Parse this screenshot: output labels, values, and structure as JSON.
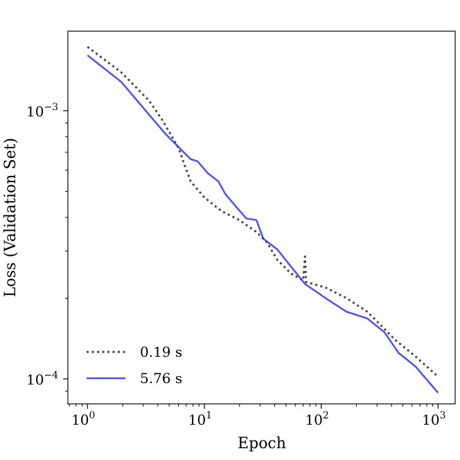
{
  "chart_data": {
    "type": "line",
    "title": "",
    "xlabel": "Epoch",
    "ylabel": "Loss (Validation Set)",
    "xscale": "log",
    "yscale": "log",
    "xlim": [
      0.68,
      1400
    ],
    "ylim": [
      8.07e-05,
      0.00198
    ],
    "grid": false,
    "legend_position": "lower-left",
    "x_ticks": [
      {
        "value": 1,
        "base": "10",
        "exp": "0"
      },
      {
        "value": 10,
        "base": "10",
        "exp": "1"
      },
      {
        "value": 100,
        "base": "10",
        "exp": "2"
      },
      {
        "value": 1000,
        "base": "10",
        "exp": "3"
      }
    ],
    "y_ticks": [
      {
        "value": 0.001,
        "base": "10",
        "exp": "−3"
      },
      {
        "value": 0.0001,
        "base": "10",
        "exp": "−4"
      }
    ],
    "series": [
      {
        "name": "0.19 s",
        "color": "#444444",
        "style": "dotted",
        "x": [
          1,
          1.95,
          3.37,
          4.43,
          6.06,
          6.66,
          7.64,
          10,
          14.1,
          19.9,
          27.9,
          34.3,
          42.1,
          55.3,
          70,
          72.7,
          74,
          109,
          165,
          248,
          326,
          428,
          645,
          1000
        ],
        "y": [
          0.00173,
          0.00139,
          0.00109,
          0.000915,
          0.000721,
          0.00064,
          0.000545,
          0.000475,
          0.000422,
          0.000391,
          0.000353,
          0.000323,
          0.000278,
          0.000247,
          0.000233,
          0.000286,
          0.00023,
          0.000219,
          0.0002,
          0.000178,
          0.000158,
          0.00014,
          0.000121,
          0.000102
        ]
      },
      {
        "name": "5.76 s",
        "color": "#3333ff",
        "style": "solid",
        "x": [
          1,
          1.95,
          3.15,
          4.74,
          6.06,
          7.64,
          8.75,
          10.7,
          13.2,
          15.1,
          18.6,
          22.8,
          27.9,
          32.0,
          42.1,
          55.3,
          72.7,
          109,
          165,
          248,
          349,
          459,
          645,
          1000
        ],
        "y": [
          0.00161,
          0.00128,
          0.001,
          0.000812,
          0.00073,
          0.00066,
          0.000648,
          0.000585,
          0.000545,
          0.00049,
          0.00044,
          0.000397,
          0.000391,
          0.000333,
          0.000304,
          0.000262,
          0.000226,
          0.0002,
          0.000178,
          0.000168,
          0.000149,
          0.000125,
          0.000111,
          8.87e-05
        ]
      }
    ]
  }
}
